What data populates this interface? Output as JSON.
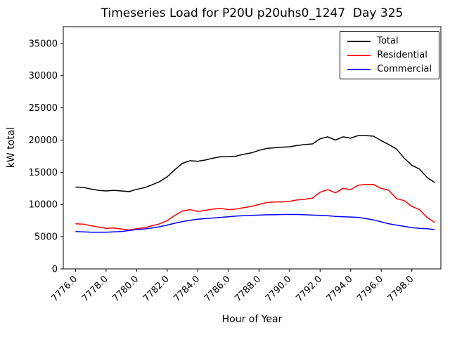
{
  "chart_data": {
    "type": "line",
    "title": "Timeseries Load for P20U p20uhs0_1247  Day 325",
    "xlabel": "Hour of Year",
    "ylabel": "kW total",
    "xlim": [
      7775.2,
      7799.9
    ],
    "ylim": [
      0,
      37600
    ],
    "grid": false,
    "legend_position": "upper right",
    "x_ticks": [
      7776,
      7778,
      7780,
      7782,
      7784,
      7786,
      7788,
      7790,
      7792,
      7794,
      7796,
      7798
    ],
    "x_tick_labels": [
      "7776.0",
      "7778.0",
      "7780.0",
      "7782.0",
      "7784.0",
      "7786.0",
      "7788.0",
      "7790.0",
      "7792.0",
      "7794.0",
      "7796.0",
      "7798.0"
    ],
    "y_ticks": [
      0,
      5000,
      10000,
      15000,
      20000,
      25000,
      30000,
      35000
    ],
    "y_tick_labels": [
      "0",
      "5000",
      "10000",
      "15000",
      "20000",
      "25000",
      "30000",
      "35000"
    ],
    "x": [
      7776.0,
      7776.5,
      7777.0,
      7777.5,
      7778.0,
      7778.5,
      7779.0,
      7779.5,
      7780.0,
      7780.5,
      7781.0,
      7781.5,
      7782.0,
      7782.5,
      7783.0,
      7783.5,
      7784.0,
      7784.5,
      7785.0,
      7785.5,
      7786.0,
      7786.5,
      7787.0,
      7787.5,
      7788.0,
      7788.5,
      7789.0,
      7789.5,
      7790.0,
      7790.5,
      7791.0,
      7791.5,
      7792.0,
      7792.5,
      7793.0,
      7793.5,
      7794.0,
      7794.5,
      7795.0,
      7795.5,
      7796.0,
      7796.5,
      7797.0,
      7797.5,
      7798.0,
      7798.5,
      7799.0,
      7799.5
    ],
    "series": [
      {
        "name": "Total",
        "color": "#000000",
        "values": [
          12700,
          12650,
          12400,
          12200,
          12100,
          12200,
          12100,
          12000,
          12350,
          12600,
          13050,
          13550,
          14300,
          15400,
          16400,
          16800,
          16700,
          16900,
          17200,
          17400,
          17400,
          17500,
          17800,
          18000,
          18400,
          18700,
          18800,
          18900,
          18950,
          19150,
          19300,
          19400,
          20200,
          20500,
          20000,
          20500,
          20300,
          20700,
          20700,
          20600,
          19900,
          19300,
          18600,
          17200,
          16100,
          15500,
          14200,
          13400
        ]
      },
      {
        "name": "Residential",
        "color": "#ff0000",
        "values": [
          7000,
          6950,
          6700,
          6500,
          6300,
          6350,
          6200,
          6050,
          6250,
          6400,
          6700,
          7000,
          7500,
          8300,
          9000,
          9200,
          8900,
          9100,
          9300,
          9400,
          9200,
          9300,
          9500,
          9700,
          10000,
          10300,
          10400,
          10400,
          10500,
          10700,
          10800,
          11000,
          11900,
          12300,
          11800,
          12500,
          12300,
          13000,
          13100,
          13100,
          12500,
          12200,
          10900,
          10600,
          9700,
          9200,
          8000,
          7200
        ]
      },
      {
        "name": "Commercial",
        "color": "#0000ff",
        "values": [
          5800,
          5750,
          5700,
          5700,
          5700,
          5750,
          5800,
          5950,
          6100,
          6200,
          6350,
          6550,
          6800,
          7100,
          7350,
          7550,
          7700,
          7800,
          7900,
          8000,
          8100,
          8200,
          8250,
          8300,
          8350,
          8400,
          8400,
          8450,
          8450,
          8450,
          8400,
          8350,
          8300,
          8250,
          8150,
          8100,
          8050,
          8000,
          7800,
          7600,
          7300,
          7000,
          6800,
          6600,
          6400,
          6300,
          6250,
          6100
        ]
      }
    ]
  }
}
